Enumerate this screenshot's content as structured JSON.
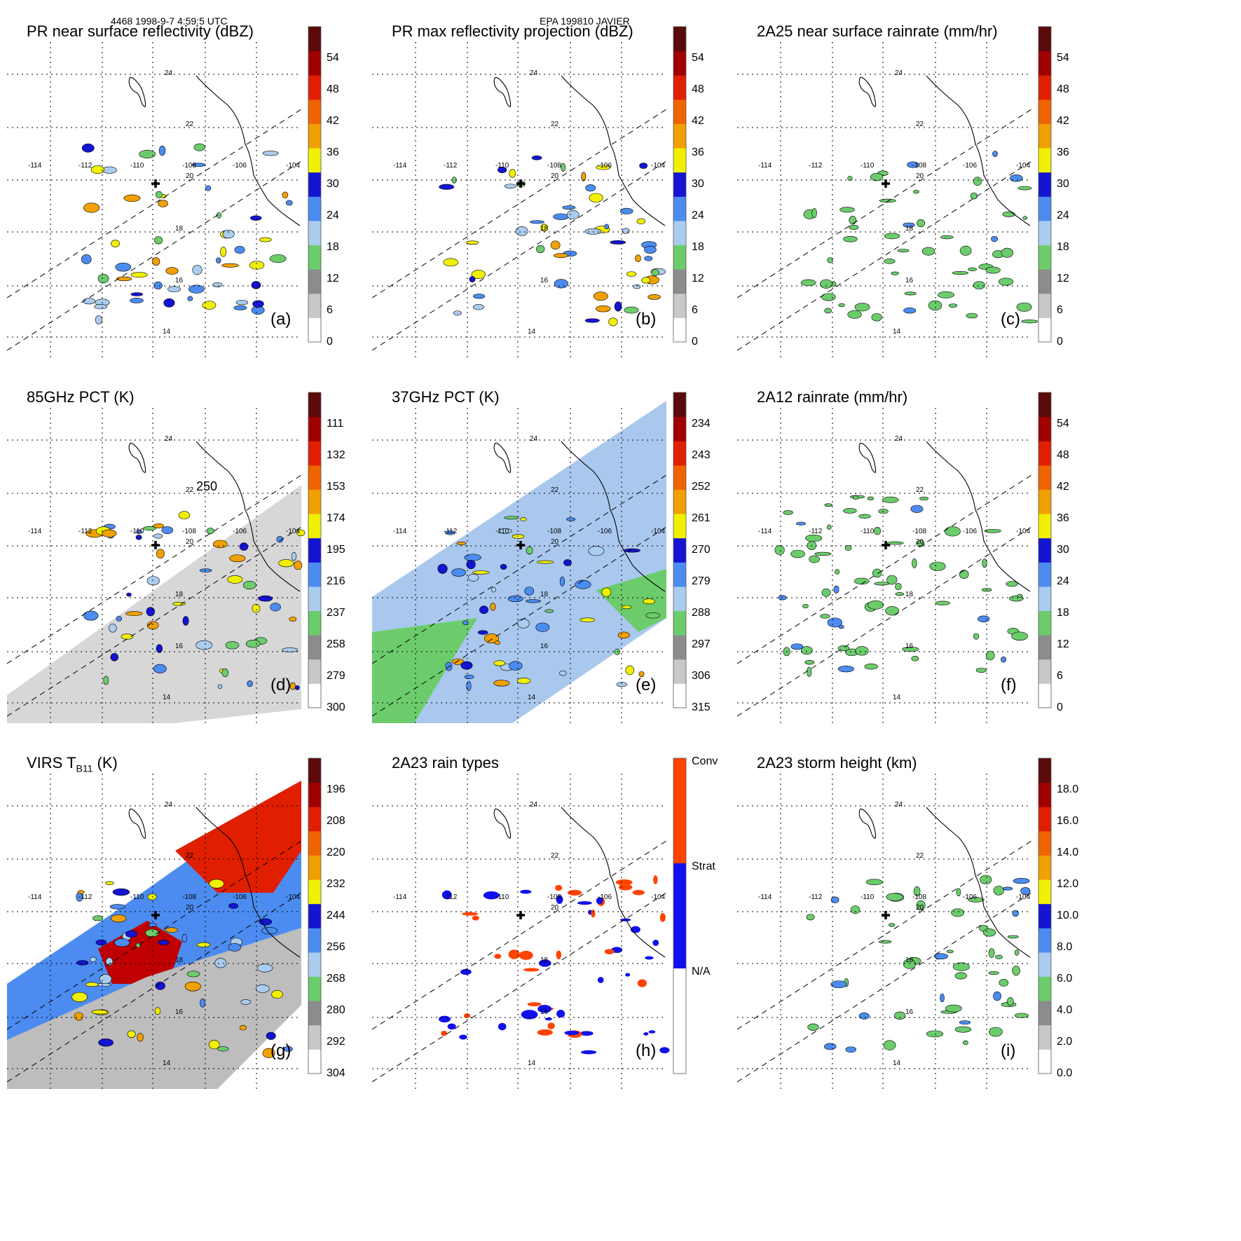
{
  "header": {
    "left": "4468 1998-9-7 4:59:5 UTC",
    "center": "EPA 199810 JAVIER"
  },
  "map": {
    "lon_ticks": [
      "-114",
      "-112",
      "-110",
      "-108",
      "-106",
      "-104"
    ],
    "lat_ticks": [
      "14",
      "16",
      "18",
      "20",
      "22",
      "24"
    ]
  },
  "panels": [
    {
      "id": "a",
      "title": "PR near surface reflectivity (dBZ)",
      "label": "(a)",
      "bg": "white",
      "colorbar": [
        "0",
        "6",
        "12",
        "18",
        "24",
        "30",
        "36",
        "42",
        "48",
        "54"
      ]
    },
    {
      "id": "b",
      "title": "PR max reflectivity projection (dBZ)",
      "label": "(b)",
      "bg": "white",
      "colorbar": [
        "0",
        "6",
        "12",
        "18",
        "24",
        "30",
        "36",
        "42",
        "48",
        "54"
      ]
    },
    {
      "id": "c",
      "title": "2A25 near surface rainrate (mm/hr)",
      "label": "(c)",
      "bg": "white",
      "colorbar": [
        "0",
        "6",
        "12",
        "18",
        "24",
        "30",
        "36",
        "42",
        "48",
        "54"
      ]
    },
    {
      "id": "d",
      "title": "85GHz PCT (K)",
      "label": "(d)",
      "bg": "gray",
      "contour": "250",
      "colorbar": [
        "300",
        "279",
        "258",
        "237",
        "216",
        "195",
        "174",
        "153",
        "132",
        "111"
      ]
    },
    {
      "id": "e",
      "title": "37GHz PCT (K)",
      "label": "(e)",
      "bg": "blue",
      "colorbar": [
        "315",
        "306",
        "297",
        "288",
        "279",
        "270",
        "261",
        "252",
        "243",
        "234"
      ]
    },
    {
      "id": "f",
      "title": "2A12 rainrate (mm/hr)",
      "label": "(f)",
      "bg": "white",
      "colorbar": [
        "0",
        "6",
        "12",
        "18",
        "24",
        "30",
        "36",
        "42",
        "48",
        "54"
      ]
    },
    {
      "id": "g",
      "title": "VIRS T",
      "title_sub": "B11",
      "title_end": " (K)",
      "label": "(g)",
      "bg": "virs",
      "colorbar": [
        "304",
        "292",
        "280",
        "268",
        "256",
        "244",
        "232",
        "220",
        "208",
        "196"
      ]
    },
    {
      "id": "h",
      "title": "2A23 rain types",
      "label": "(h)",
      "bg": "white",
      "colorbar": [
        "N/A",
        "Strat",
        "Conv"
      ]
    },
    {
      "id": "i",
      "title": "2A23 storm height (km)",
      "label": "(i)",
      "bg": "white",
      "colorbar": [
        "0.0",
        "2.0",
        "4.0",
        "6.0",
        "8.0",
        "10.0",
        "12.0",
        "14.0",
        "16.0",
        "18.0"
      ]
    }
  ],
  "colors": {
    "scale": [
      "#ffffff",
      "#c8c8c8",
      "#8c8c8c",
      "#6ccc6c",
      "#aaccee",
      "#4c8cf0",
      "#1414d2",
      "#f0f000",
      "#f0a000",
      "#f06400",
      "#e01e00",
      "#a00000",
      "#5a0a0a"
    ],
    "conv": "#ff4400",
    "strat": "#1010ee",
    "na": "#ffffff"
  }
}
